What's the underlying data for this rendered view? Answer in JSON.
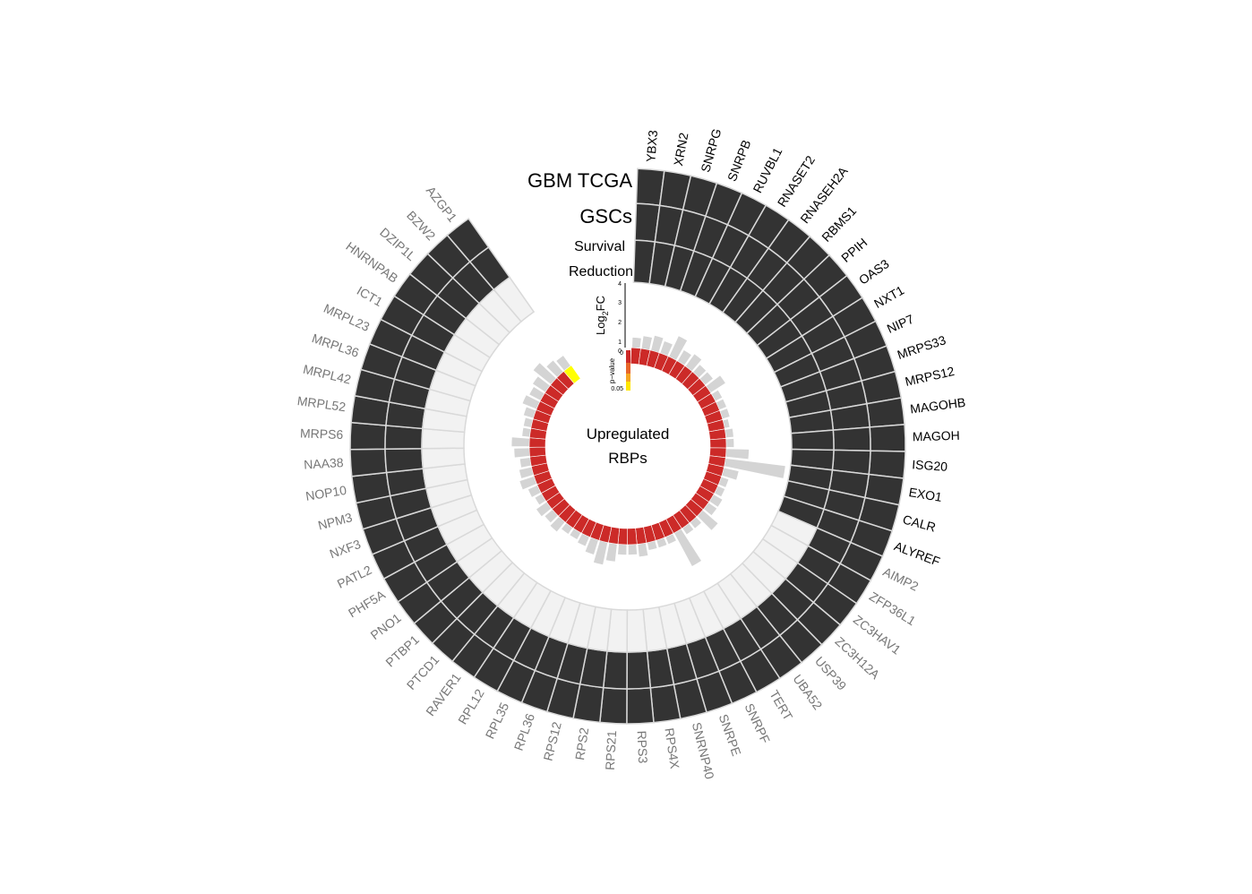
{
  "chart_data": {
    "type": "circular-heatmap",
    "center_label": [
      "Upregulated",
      "RBPs"
    ],
    "track_labels": {
      "tcga": "GBM TCGA",
      "gscs": "GSCs",
      "survival": [
        "Survival",
        "Reduction"
      ]
    },
    "axis_label_fc": "Log",
    "axis_label_fc_sub": "2",
    "axis_label_fc_tail": "FC",
    "axis_label_p": "p−value",
    "fc_ticks": [
      "4",
      "3",
      "2",
      "1",
      "0"
    ],
    "p_ticks": [
      "0",
      "0.05"
    ],
    "colors": {
      "dark": "#333333",
      "light": "#f2f2f2",
      "red": "#cc2a28",
      "yellow": "#ffff00",
      "grey": "#d4d4d4",
      "label_black": "#000000",
      "label_grey": "#777777"
    },
    "genes": [
      {
        "name": "YBX3",
        "fc": 0.4,
        "survival": true,
        "pclass": "red"
      },
      {
        "name": "XRN2",
        "fc": 0.5,
        "survival": true,
        "pclass": "red"
      },
      {
        "name": "SNRPG",
        "fc": 0.6,
        "survival": true,
        "pclass": "red"
      },
      {
        "name": "SNRPB",
        "fc": 0.5,
        "survival": true,
        "pclass": "red"
      },
      {
        "name": "RUVBL1",
        "fc": 0.9,
        "survival": true,
        "pclass": "red"
      },
      {
        "name": "RNASET2",
        "fc": 0.5,
        "survival": true,
        "pclass": "red"
      },
      {
        "name": "RNASEH2A",
        "fc": 0.6,
        "survival": true,
        "pclass": "red"
      },
      {
        "name": "RBMS1",
        "fc": 0.4,
        "survival": true,
        "pclass": "red"
      },
      {
        "name": "PPIH",
        "fc": 0.4,
        "survival": true,
        "pclass": "red"
      },
      {
        "name": "OAS3",
        "fc": 0.7,
        "survival": true,
        "pclass": "red"
      },
      {
        "name": "NXT1",
        "fc": 0.3,
        "survival": true,
        "pclass": "red"
      },
      {
        "name": "NIP7",
        "fc": 0.3,
        "survival": true,
        "pclass": "red"
      },
      {
        "name": "MRPS33",
        "fc": 0.3,
        "survival": true,
        "pclass": "red"
      },
      {
        "name": "MRPS12",
        "fc": 0.2,
        "survival": true,
        "pclass": "red"
      },
      {
        "name": "MAGOHB",
        "fc": 0.3,
        "survival": true,
        "pclass": "red"
      },
      {
        "name": "MAGOH",
        "fc": 0.3,
        "survival": true,
        "pclass": "red"
      },
      {
        "name": "ISG20",
        "fc": 0.9,
        "survival": true,
        "pclass": "red"
      },
      {
        "name": "EXO1",
        "fc": 2.4,
        "survival": true,
        "pclass": "red"
      },
      {
        "name": "CALR",
        "fc": 0.6,
        "survival": true,
        "pclass": "red"
      },
      {
        "name": "ALYREF",
        "fc": 0.3,
        "survival": true,
        "pclass": "red"
      },
      {
        "name": "AIMP2",
        "fc": 0.3,
        "survival": false,
        "pclass": "red"
      },
      {
        "name": "ZFP36L1",
        "fc": 0.4,
        "survival": false,
        "pclass": "red"
      },
      {
        "name": "ZC3HAV1",
        "fc": 0.4,
        "survival": false,
        "pclass": "red"
      },
      {
        "name": "ZC3H12A",
        "fc": 0.8,
        "survival": false,
        "pclass": "red"
      },
      {
        "name": "USP39",
        "fc": 0.3,
        "survival": false,
        "pclass": "red"
      },
      {
        "name": "UBA52",
        "fc": 0.3,
        "survival": false,
        "pclass": "red"
      },
      {
        "name": "TERT",
        "fc": 1.5,
        "survival": false,
        "pclass": "red"
      },
      {
        "name": "SNRPF",
        "fc": 0.3,
        "survival": false,
        "pclass": "red"
      },
      {
        "name": "SNRPE",
        "fc": 0.3,
        "survival": false,
        "pclass": "red"
      },
      {
        "name": "SNRNP40",
        "fc": 0.3,
        "survival": false,
        "pclass": "red"
      },
      {
        "name": "RPS4X",
        "fc": 0.5,
        "survival": false,
        "pclass": "red"
      },
      {
        "name": "RPS3",
        "fc": 0.4,
        "survival": false,
        "pclass": "red"
      },
      {
        "name": "RPS21",
        "fc": 0.4,
        "survival": false,
        "pclass": "red"
      },
      {
        "name": "RPS2",
        "fc": 0.7,
        "survival": false,
        "pclass": "red"
      },
      {
        "name": "RPS12",
        "fc": 0.9,
        "survival": false,
        "pclass": "red"
      },
      {
        "name": "RPL36",
        "fc": 0.6,
        "survival": false,
        "pclass": "red"
      },
      {
        "name": "RPL35",
        "fc": 0.4,
        "survival": false,
        "pclass": "red"
      },
      {
        "name": "RPL12",
        "fc": 0.3,
        "survival": false,
        "pclass": "red"
      },
      {
        "name": "RAVER1",
        "fc": 0.3,
        "survival": false,
        "pclass": "red"
      },
      {
        "name": "PTCD1",
        "fc": 0.5,
        "survival": false,
        "pclass": "red"
      },
      {
        "name": "PTBP1",
        "fc": 0.4,
        "survival": false,
        "pclass": "red"
      },
      {
        "name": "PNO1",
        "fc": 0.5,
        "survival": false,
        "pclass": "red"
      },
      {
        "name": "PHF5A",
        "fc": 0.3,
        "survival": false,
        "pclass": "red"
      },
      {
        "name": "PATL2",
        "fc": 0.4,
        "survival": false,
        "pclass": "red"
      },
      {
        "name": "NXF3",
        "fc": 0.6,
        "survival": false,
        "pclass": "red"
      },
      {
        "name": "NPM3",
        "fc": 0.5,
        "survival": false,
        "pclass": "red"
      },
      {
        "name": "NOP10",
        "fc": 0.4,
        "survival": false,
        "pclass": "red"
      },
      {
        "name": "NAA38",
        "fc": 0.6,
        "survival": false,
        "pclass": "red"
      },
      {
        "name": "MRPS6",
        "fc": 0.7,
        "survival": false,
        "pclass": "red"
      },
      {
        "name": "MRPL52",
        "fc": 0.3,
        "survival": false,
        "pclass": "red"
      },
      {
        "name": "MRPL42",
        "fc": 0.3,
        "survival": false,
        "pclass": "red"
      },
      {
        "name": "MRPL36",
        "fc": 0.4,
        "survival": false,
        "pclass": "red"
      },
      {
        "name": "MRPL23",
        "fc": 0.6,
        "survival": false,
        "pclass": "red"
      },
      {
        "name": "ICT1",
        "fc": 0.5,
        "survival": false,
        "pclass": "red"
      },
      {
        "name": "HNRNPAB",
        "fc": 0.6,
        "survival": false,
        "pclass": "red"
      },
      {
        "name": "DZIP1L",
        "fc": 0.9,
        "survival": false,
        "pclass": "red"
      },
      {
        "name": "BZW2",
        "fc": 0.6,
        "survival": false,
        "pclass": "red"
      },
      {
        "name": "AZGP1",
        "fc": 0.5,
        "survival": false,
        "pclass": "yellow"
      }
    ]
  }
}
